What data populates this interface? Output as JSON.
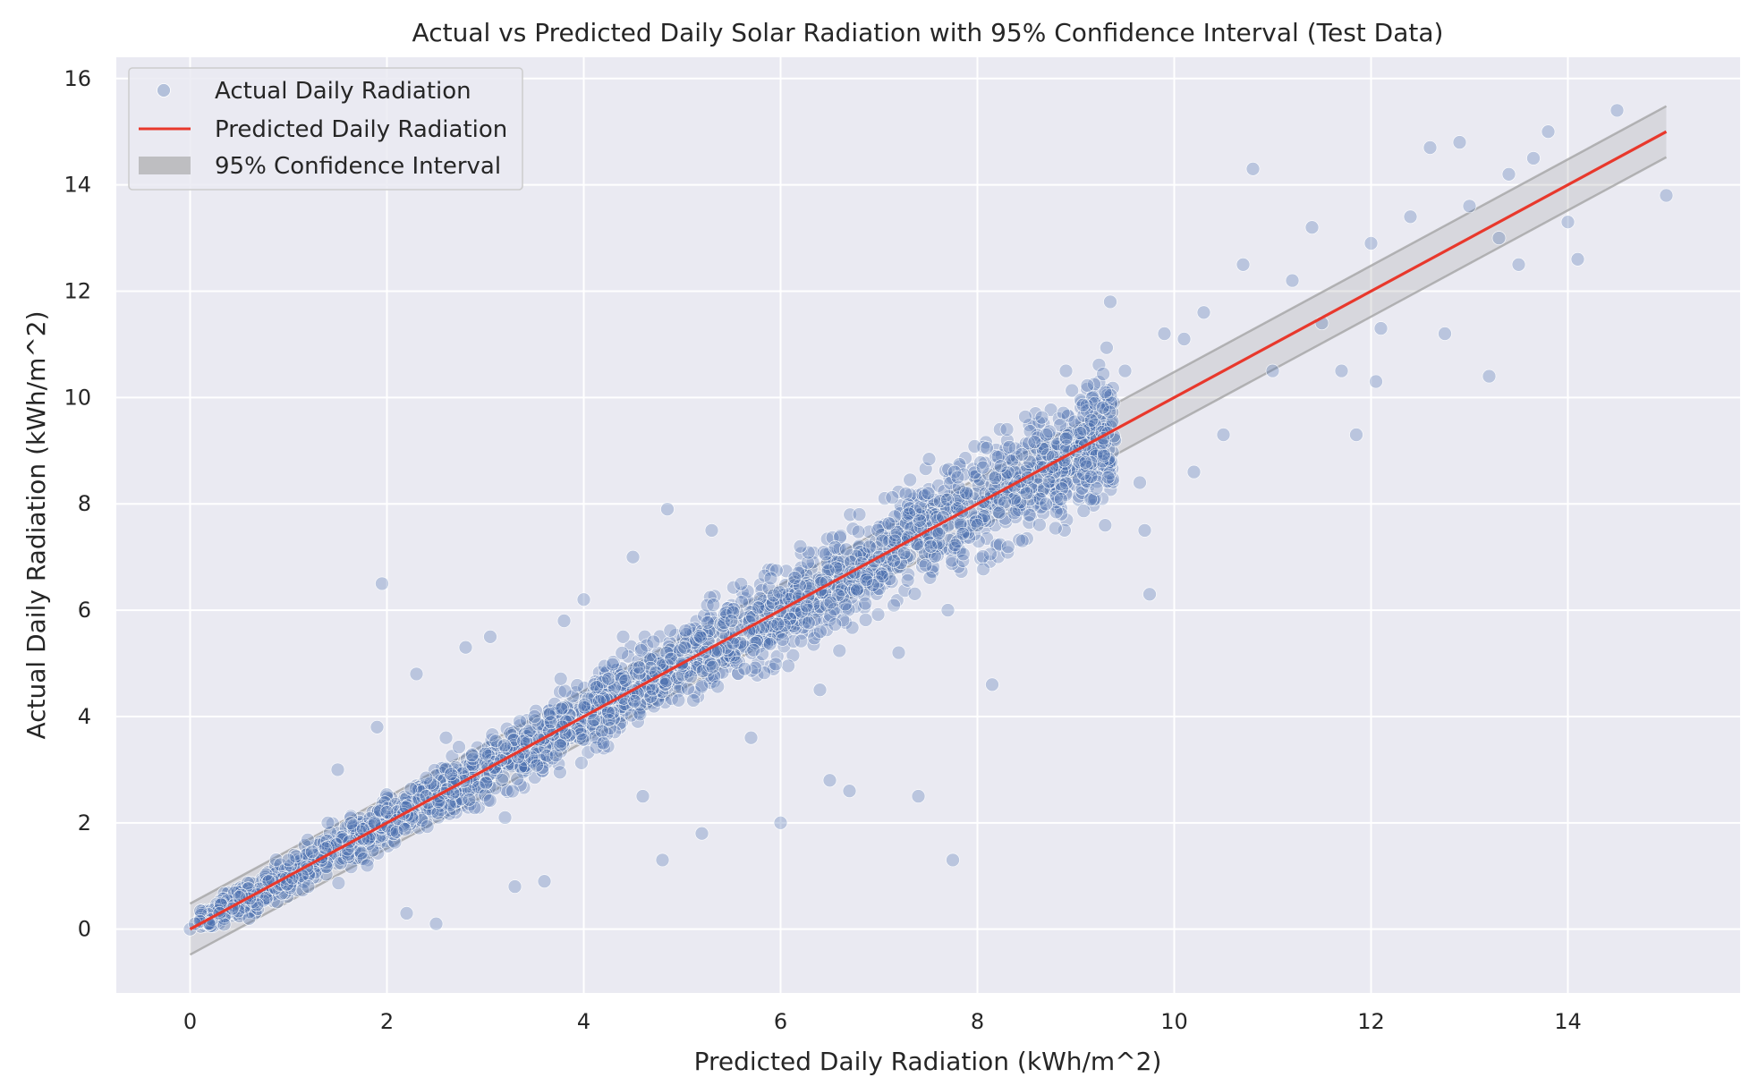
{
  "chart_data": {
    "type": "scatter",
    "title": "Actual vs Predicted Daily Solar Radiation with 95% Confidence Interval (Test Data)",
    "xlabel": "Predicted Daily Radiation (kWh/m^2)",
    "ylabel": "Actual Daily Radiation (kWh/m^2)",
    "xlim": [
      -0.75,
      15.75
    ],
    "ylim": [
      -1.2,
      16.4
    ],
    "xticks": [
      0,
      2,
      4,
      6,
      8,
      10,
      12,
      14
    ],
    "yticks": [
      0,
      2,
      4,
      6,
      8,
      10,
      12,
      14,
      16
    ],
    "grid": true,
    "legend_position": "top-left",
    "colors": {
      "background": "#eaeaf2",
      "grid": "#ffffff",
      "scatter": "#4c72b0",
      "prediction_line": "#e8382c",
      "ci_band": "#a0a0a0"
    },
    "series": [
      {
        "name": "Actual Daily Radiation",
        "kind": "scatter",
        "sample_points": [
          [
            0.0,
            0.0
          ],
          [
            0.05,
            0.1
          ],
          [
            0.1,
            0.15
          ],
          [
            0.2,
            0.1
          ],
          [
            0.3,
            0.3
          ],
          [
            0.5,
            0.6
          ],
          [
            0.6,
            0.2
          ],
          [
            0.8,
            0.9
          ],
          [
            1.0,
            1.3
          ],
          [
            1.2,
            0.8
          ],
          [
            1.4,
            2.0
          ],
          [
            1.5,
            3.0
          ],
          [
            1.6,
            1.5
          ],
          [
            1.8,
            1.2
          ],
          [
            1.9,
            3.8
          ],
          [
            1.95,
            6.5
          ],
          [
            2.0,
            2.2
          ],
          [
            2.2,
            0.3
          ],
          [
            2.3,
            4.8
          ],
          [
            2.4,
            2.5
          ],
          [
            2.5,
            0.1
          ],
          [
            2.6,
            3.6
          ],
          [
            2.8,
            5.3
          ],
          [
            3.0,
            3.3
          ],
          [
            3.05,
            5.5
          ],
          [
            3.2,
            2.1
          ],
          [
            3.3,
            0.8
          ],
          [
            3.5,
            4.0
          ],
          [
            3.6,
            0.9
          ],
          [
            3.8,
            5.8
          ],
          [
            4.0,
            6.2
          ],
          [
            4.2,
            3.5
          ],
          [
            4.4,
            5.5
          ],
          [
            4.5,
            7.0
          ],
          [
            4.6,
            2.5
          ],
          [
            4.8,
            1.3
          ],
          [
            4.85,
            7.9
          ],
          [
            5.0,
            5.0
          ],
          [
            5.2,
            1.8
          ],
          [
            5.3,
            7.5
          ],
          [
            5.5,
            5.8
          ],
          [
            5.7,
            3.6
          ],
          [
            5.9,
            6.6
          ],
          [
            6.0,
            2.0
          ],
          [
            6.2,
            7.2
          ],
          [
            6.4,
            4.5
          ],
          [
            6.5,
            2.8
          ],
          [
            6.7,
            2.6
          ],
          [
            6.8,
            7.8
          ],
          [
            7.0,
            7.0
          ],
          [
            7.2,
            5.2
          ],
          [
            7.4,
            2.5
          ],
          [
            7.5,
            8.2
          ],
          [
            7.7,
            6.0
          ],
          [
            7.75,
            1.3
          ],
          [
            7.8,
            8.5
          ],
          [
            8.0,
            7.6
          ],
          [
            8.15,
            4.6
          ],
          [
            8.3,
            9.4
          ],
          [
            8.5,
            8.2
          ],
          [
            8.7,
            9.3
          ],
          [
            8.9,
            10.5
          ],
          [
            9.0,
            9.0
          ],
          [
            9.3,
            10.1
          ],
          [
            9.35,
            11.8
          ],
          [
            9.5,
            10.5
          ],
          [
            9.65,
            8.4
          ],
          [
            9.7,
            7.5
          ],
          [
            9.75,
            6.3
          ],
          [
            9.9,
            11.2
          ],
          [
            10.1,
            11.1
          ],
          [
            10.2,
            8.6
          ],
          [
            10.3,
            11.6
          ],
          [
            10.5,
            9.3
          ],
          [
            10.7,
            12.5
          ],
          [
            10.8,
            14.3
          ],
          [
            11.0,
            10.5
          ],
          [
            11.2,
            12.2
          ],
          [
            11.4,
            13.2
          ],
          [
            11.5,
            11.4
          ],
          [
            11.7,
            10.5
          ],
          [
            11.85,
            9.3
          ],
          [
            12.0,
            12.9
          ],
          [
            12.05,
            10.3
          ],
          [
            12.1,
            11.3
          ],
          [
            12.4,
            13.4
          ],
          [
            12.6,
            14.7
          ],
          [
            12.75,
            11.2
          ],
          [
            12.9,
            14.8
          ],
          [
            13.0,
            13.6
          ],
          [
            13.2,
            10.4
          ],
          [
            13.3,
            13.0
          ],
          [
            13.4,
            14.2
          ],
          [
            13.5,
            12.5
          ],
          [
            13.65,
            14.5
          ],
          [
            13.8,
            15.0
          ],
          [
            14.0,
            13.3
          ],
          [
            14.1,
            12.6
          ],
          [
            14.5,
            15.4
          ],
          [
            15.0,
            13.8
          ]
        ]
      },
      {
        "name": "Predicted Daily Radiation",
        "kind": "line",
        "x": [
          0,
          15
        ],
        "y": [
          0,
          15
        ]
      },
      {
        "name": "95% Confidence Interval",
        "kind": "band",
        "x": [
          0,
          15
        ],
        "lower": [
          -0.48,
          14.52
        ],
        "upper": [
          0.48,
          15.48
        ]
      }
    ]
  }
}
